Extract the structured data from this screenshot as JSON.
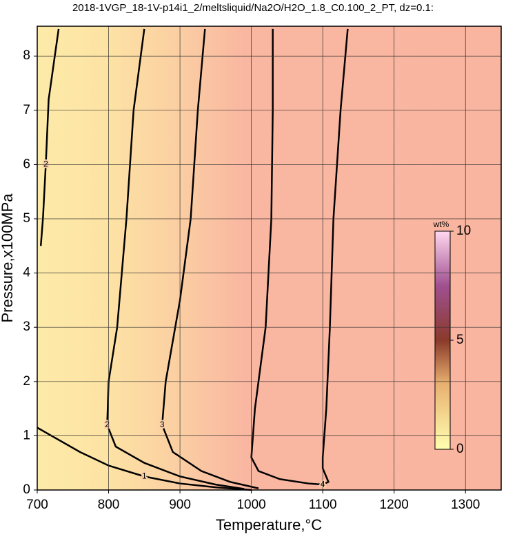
{
  "chart_data": {
    "type": "contour",
    "title": "2018-1VGP_18-1V-p14i1_2/meltsliquid/Na2O/H2O_1.8_C0.100_2_PT, dz=0.1:",
    "xlabel": "Temperature,°C",
    "ylabel": "Pressure,x100MPa",
    "xlim": [
      700,
      1350
    ],
    "ylim": [
      0,
      8.55
    ],
    "xticks": [
      700,
      800,
      900,
      1000,
      1100,
      1200,
      1300
    ],
    "yticks": [
      0,
      1,
      2,
      3,
      4,
      5,
      6,
      7,
      8
    ],
    "grid": true,
    "contours": [
      {
        "level": 1,
        "x": [
          700,
          720,
          760,
          800,
          850,
          900,
          950,
          1000
        ],
        "y": [
          1.15,
          1.0,
          0.7,
          0.45,
          0.25,
          0.12,
          0.05,
          0.0
        ]
      },
      {
        "level": 2,
        "x": [
          730,
          716,
          712,
          708,
          705
        ],
        "y": [
          8.5,
          7.2,
          6.0,
          5.0,
          4.5
        ]
      },
      {
        "level": 2,
        "x": [
          850,
          835,
          825,
          812,
          800,
          798,
          810,
          850,
          900,
          950,
          990
        ],
        "y": [
          8.5,
          7.0,
          5.0,
          3.0,
          2.0,
          1.2,
          0.8,
          0.5,
          0.25,
          0.1,
          0.02
        ]
      },
      {
        "level": 3,
        "x": [
          935,
          925,
          915,
          900,
          880,
          875,
          890,
          930,
          970,
          1010
        ],
        "y": [
          8.5,
          7.0,
          5.0,
          3.5,
          2.0,
          1.2,
          0.7,
          0.35,
          0.15,
          0.03
        ]
      },
      {
        "level": 4,
        "x": [
          1030,
          1030,
          1028,
          1020,
          1005,
          1000,
          1010,
          1040,
          1080,
          1100,
          1108,
          1100,
          1100,
          1105,
          1110,
          1115,
          1125,
          1135
        ],
        "y": [
          8.5,
          7.0,
          5.0,
          3.0,
          1.5,
          0.6,
          0.35,
          0.2,
          0.12,
          0.1,
          0.15,
          0.4,
          0.6,
          1.5,
          3.0,
          5.0,
          7.0,
          8.5
        ]
      }
    ],
    "contour_color": "#000000",
    "colorbar": {
      "label": "wt%",
      "lim": [
        0,
        10
      ],
      "ticks": [
        0,
        5,
        10
      ]
    }
  }
}
